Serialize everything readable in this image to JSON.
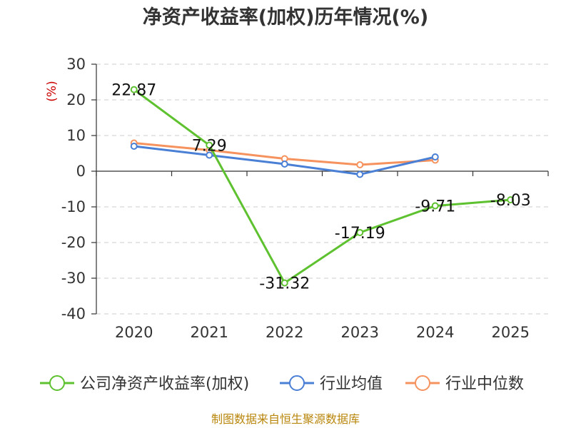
{
  "chart_data": {
    "type": "line",
    "title": "净资产收益率(加权)历年情况(%)",
    "ylabel": "(%)",
    "xlabel": "",
    "categories": [
      "2020",
      "2021",
      "2022",
      "2023",
      "2024",
      "2025"
    ],
    "ylim": [
      -40,
      30
    ],
    "yticks": [
      30,
      20,
      10,
      0,
      -10,
      -20,
      -30,
      -40
    ],
    "grid": true,
    "legend_position": "bottom",
    "series": [
      {
        "name": "公司净资产收益率(加权)",
        "color": "#5ec12f",
        "values": [
          22.87,
          7.29,
          -31.32,
          -17.19,
          -9.71,
          -8.03
        ],
        "labels": [
          "22.87",
          "7.29",
          "-31.32",
          "-17.19",
          "-9.71",
          "-8.03"
        ]
      },
      {
        "name": "行业均值",
        "color": "#4a7fd6",
        "values": [
          7.0,
          4.5,
          2.0,
          -0.9,
          4.0,
          null
        ]
      },
      {
        "name": "行业中位数",
        "color": "#f5925e",
        "values": [
          7.9,
          5.9,
          3.5,
          1.8,
          3.1,
          null
        ]
      }
    ]
  },
  "footer": {
    "source": "制图数据来自恒生聚源数据库"
  }
}
